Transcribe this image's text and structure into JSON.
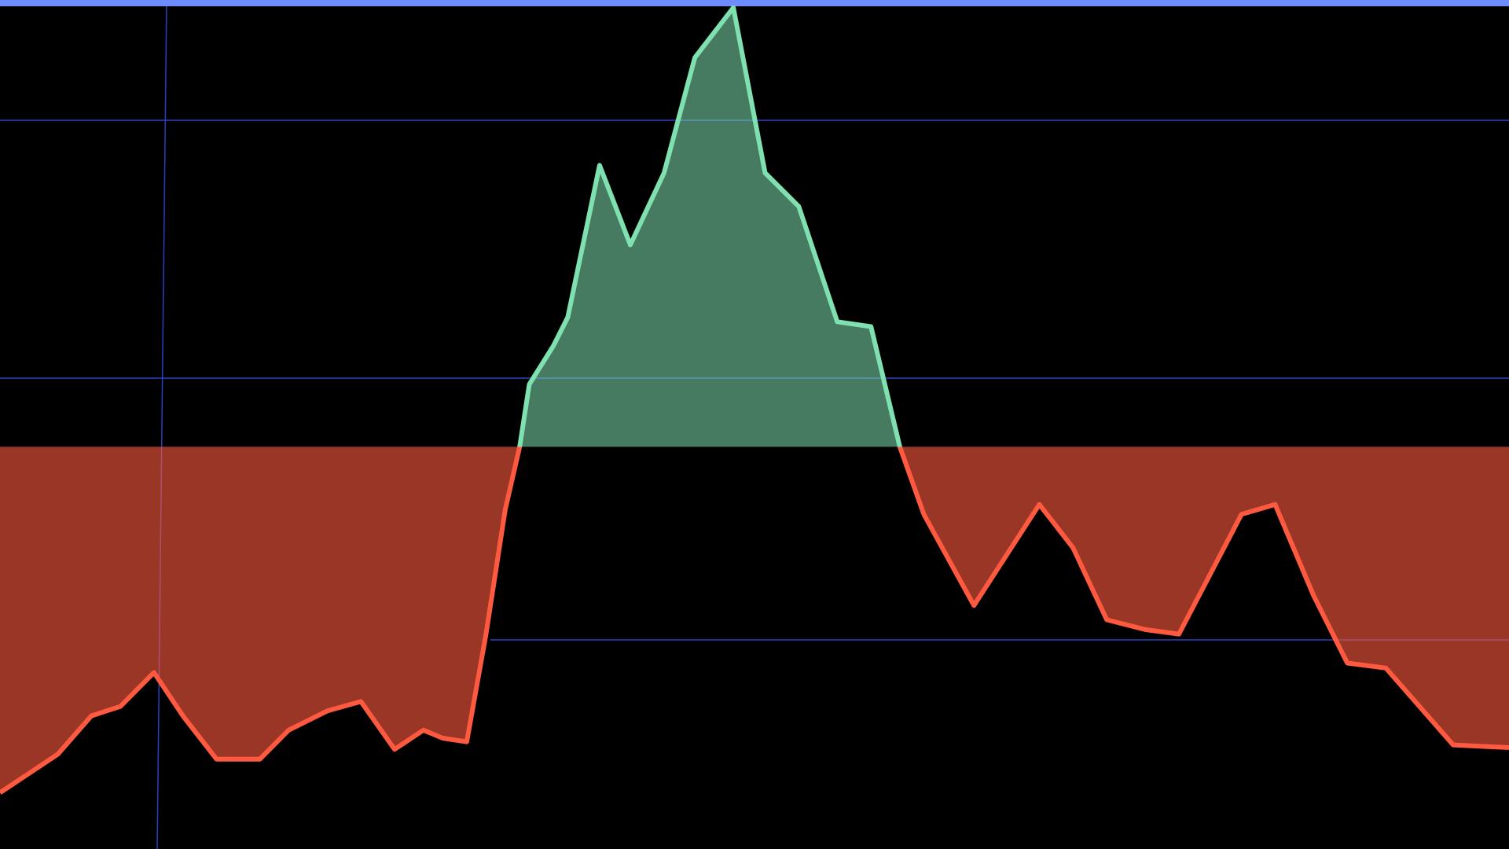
{
  "chart_data": {
    "type": "line",
    "x": [
      0,
      60,
      95,
      125,
      160,
      190,
      225,
      270,
      300,
      340,
      375,
      410,
      440,
      460,
      485,
      505,
      525,
      540,
      550,
      575,
      590,
      623,
      655,
      690,
      722,
      762,
      795,
      830,
      845,
      870,
      905,
      935,
      960,
      1012,
      1080,
      1115,
      1150,
      1190,
      1225,
      1290,
      1325,
      1365,
      1400,
      1440,
      1510,
      1568
    ],
    "values": [
      -77.4,
      -68.8,
      -60.2,
      -58.1,
      -50.5,
      -60.2,
      -69.9,
      -69.9,
      -63.4,
      -59.1,
      -57.0,
      -67.7,
      -63.4,
      -65.2,
      -66.0,
      -41.9,
      -14.0,
      0,
      14.0,
      22.6,
      29.0,
      63.0,
      45.2,
      61.3,
      87.1,
      98.3,
      61.3,
      53.8,
      44.1,
      28.0,
      26.9,
      0,
      -15.1,
      -35.5,
      -12.9,
      -22.6,
      -38.7,
      -40.9,
      -41.9,
      -15.1,
      -12.9,
      -33.3,
      -48.4,
      -49.5,
      -66.7,
      -67.3
    ],
    "xlim": [
      0,
      1568
    ],
    "ylim": [
      -90,
      100
    ],
    "baseline": 0,
    "color_above": "#7fe0b0",
    "color_below": "#ff5a40"
  }
}
